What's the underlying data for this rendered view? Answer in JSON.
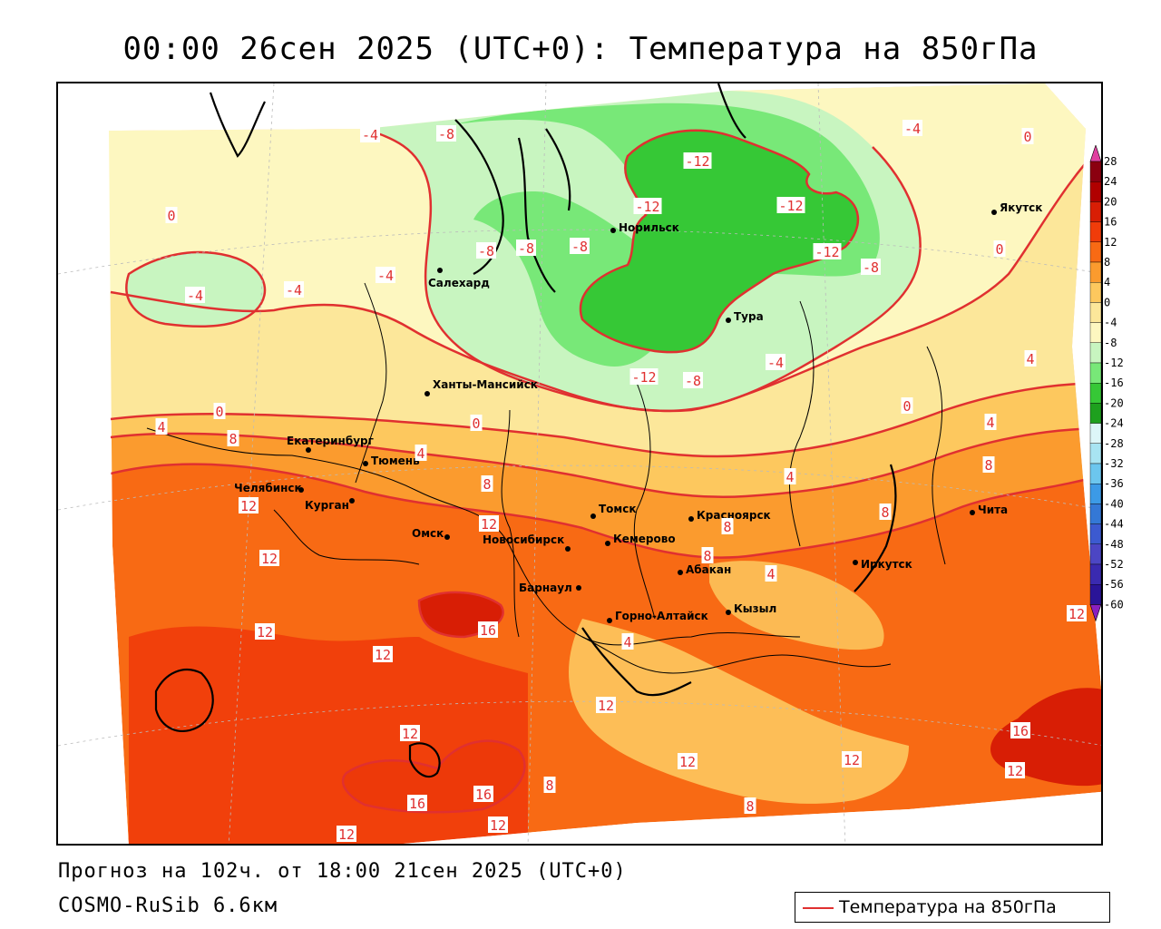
{
  "header": {
    "title": "00:00 26сен 2025 (UTC+0): Температура на 850гПа"
  },
  "footer": {
    "forecast": "Прогноз на 102ч. от 18:00 21сен 2025 (UTC+0)",
    "model": "COSMO-RuSib 6.6км"
  },
  "legend": {
    "label": "Температура на 850гПа",
    "line_color": "#e03030"
  },
  "colorbar": {
    "levels": [
      "28",
      "24",
      "20",
      "16",
      "12",
      "8",
      "4",
      "0",
      "-4",
      "-8",
      "-12",
      "-16",
      "-20",
      "-24",
      "-28",
      "-32",
      "-36",
      "-40",
      "-44",
      "-48",
      "-52",
      "-56",
      "-60"
    ],
    "colors": [
      "#8b0010",
      "#b00000",
      "#d81e05",
      "#f03c0a",
      "#f86a14",
      "#fb9b2e",
      "#fdc85e",
      "#fce79a",
      "#fdf7c0",
      "#c8f5c0",
      "#78e878",
      "#36c836",
      "#1ea01e",
      "#ddf6f8",
      "#a8e4f2",
      "#6cc6ee",
      "#3c9ae6",
      "#3478d6",
      "#3c5ad0",
      "#4c46c4",
      "#3a2ab0",
      "#2a1498",
      "#1a0880"
    ],
    "top_arrow_color": "#e040a0",
    "bottom_arrow_color": "#8a20c0"
  },
  "cities": [
    {
      "name": "Салехард"
    },
    {
      "name": "Норильск"
    },
    {
      "name": "Якутск"
    },
    {
      "name": "Тура"
    },
    {
      "name": "Ханты-Мансийск"
    },
    {
      "name": "Екатеринбург"
    },
    {
      "name": "Тюмень"
    },
    {
      "name": "Челябинск"
    },
    {
      "name": "Курган"
    },
    {
      "name": "Омск"
    },
    {
      "name": "Новосибирск"
    },
    {
      "name": "Томск"
    },
    {
      "name": "Кемерово"
    },
    {
      "name": "Красноярск"
    },
    {
      "name": "Барнаул"
    },
    {
      "name": "Абакан"
    },
    {
      "name": "Горно-Алтайск"
    },
    {
      "name": "Кызыл"
    },
    {
      "name": "Иркутск"
    },
    {
      "name": "Чита"
    }
  ],
  "isotherm_labels": [
    "-4",
    "-8",
    "0",
    "-12",
    "-4",
    "-8",
    "-4",
    "0",
    "-4",
    "-4",
    "-8",
    "-8",
    "-12",
    "-12",
    "-12",
    "-8",
    "-4",
    "-12",
    "-8",
    "4",
    "0",
    "0",
    "4",
    "0",
    "8",
    "4",
    "8",
    "4",
    "0",
    "12",
    "8",
    "12",
    "12",
    "12",
    "8",
    "4",
    "16",
    "12",
    "12",
    "4",
    "8",
    "8",
    "4",
    "12",
    "16",
    "16",
    "12",
    "12",
    "8",
    "8",
    "12",
    "12",
    "16",
    "12",
    "12"
  ],
  "colors": {
    "isotherm": "#e03030",
    "border": "#000000",
    "bg_outside": "#ffffff"
  }
}
